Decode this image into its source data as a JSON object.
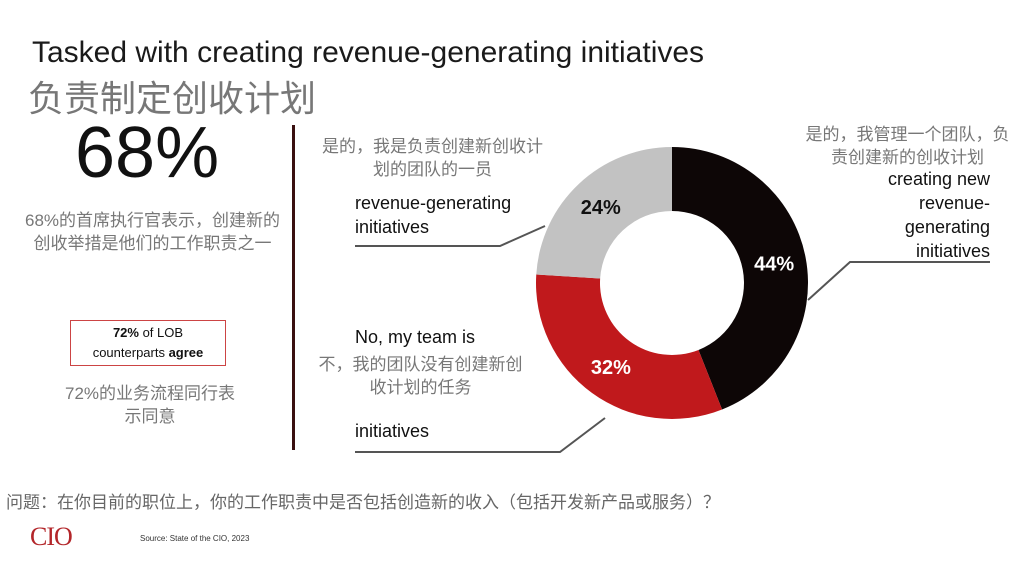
{
  "title": "Tasked with creating revenue-generating initiatives",
  "title_cn": "负责制定创收计划",
  "stat": {
    "value": "68%",
    "caption_cn": "68%的首席执行官表示，创建新的创收举措是他们的工作职责之一",
    "lob_bold": "72%",
    "lob_text1": " of LOB",
    "lob_text2": "counterparts ",
    "lob_bold2": "agree",
    "lob_cn": "72%的业务流程同行表示同意"
  },
  "chart_data": {
    "type": "pie",
    "donut": true,
    "slices": [
      {
        "label": "Yes, I manage a team creating new revenue-generating initiatives",
        "value": 44,
        "display": "44%",
        "color": "#0d0606"
      },
      {
        "label": "No, my team is not tasked with creating new revenue-generating initiatives",
        "value": 32,
        "display": "32%",
        "color": "#c0191c"
      },
      {
        "label": "Yes, I am part of a team creating new revenue-generating initiatives",
        "value": 24,
        "display": "24%",
        "color": "#c2c2c2"
      }
    ]
  },
  "labels": {
    "gray_en": [
      "revenue-generating",
      "initiatives"
    ],
    "gray_cn": "是的，我是负责创建新创收计划的团队的一员",
    "black_en": [
      "creating new",
      "revenue-",
      "generating",
      "initiatives"
    ],
    "black_cn": "是的，我管理一个团队，负责创建新的创收计划",
    "red_en_top": "No, my team is",
    "red_en": [
      "initiatives"
    ],
    "red_cn": "不，我的团队没有创建新创收计划的任务"
  },
  "question_cn": "问题：在你目前的职位上，你的工作职责中是否包括创造新的收入（包括开发新产品或服务）？",
  "logo": "CIO",
  "source": "Source: State of the CIO, 2023"
}
